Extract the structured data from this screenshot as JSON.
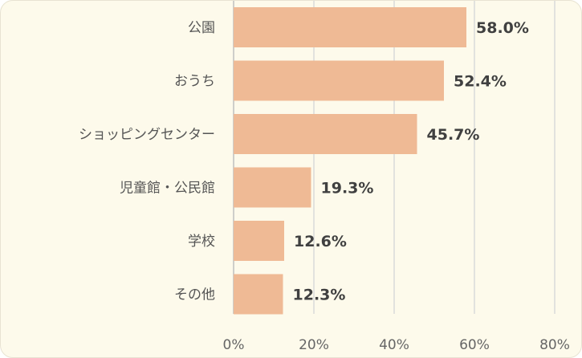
{
  "chart_data": {
    "type": "bar",
    "orientation": "horizontal",
    "title": "",
    "xlabel": "",
    "ylabel": "",
    "categories": [
      "公園",
      "おうち",
      "ショッピングセンター",
      "児童館・公民館",
      "学校",
      "その他"
    ],
    "values": [
      58.0,
      52.4,
      45.7,
      19.3,
      12.6,
      12.3
    ],
    "data_labels": [
      "58.0%",
      "52.4%",
      "45.7%",
      "19.3%",
      "12.6%",
      "12.3%"
    ],
    "xlim": [
      0,
      80
    ],
    "ticks": [
      0,
      20,
      40,
      60,
      80
    ],
    "tick_labels": [
      "0%",
      "20%",
      "40%",
      "60%",
      "80%"
    ],
    "grid": true,
    "legend": "none",
    "bar_color": "#efba95",
    "background_color": "#fdfaeb",
    "gridline_color": "#d9d9d9"
  }
}
